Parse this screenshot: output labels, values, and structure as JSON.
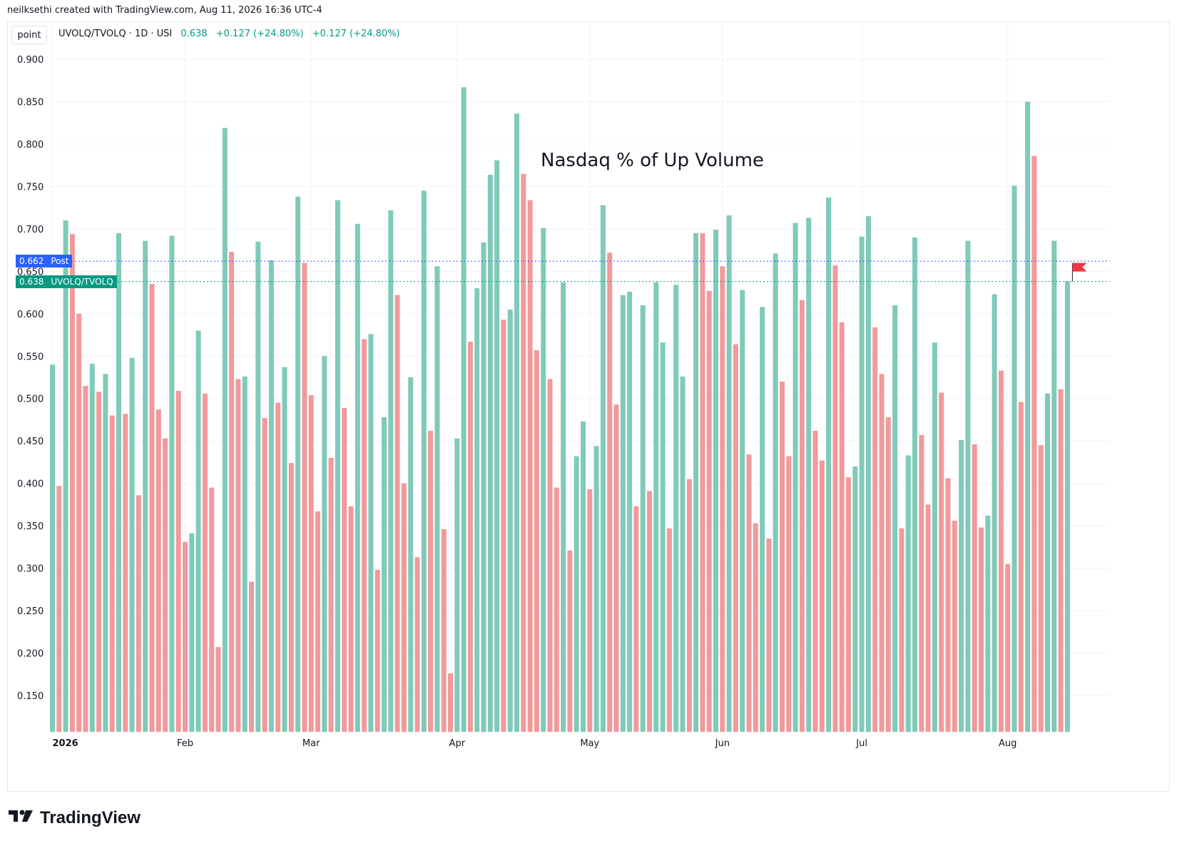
{
  "credit": "neilksethi created with TradingView.com, Aug 11, 2026 16:36 UTC-4",
  "point_button": "point",
  "legend": {
    "symbol": "UVOLQ/TVOLQ · 1D · USI",
    "last": "0.638",
    "change": "+0.127 (+24.80%)",
    "change2": "+0.127 (+24.80%)"
  },
  "annotation": "Nasdaq % of Up Volume",
  "tags": {
    "post_value": "0.662",
    "post_label": "Post",
    "series_value": "0.638",
    "series_label": "UVOLQ/TVOLQ"
  },
  "brand": "TradingView",
  "colors": {
    "up": "#7fcab8",
    "down": "#f2999b",
    "tag_post": "#2962ff",
    "tag_series": "#089981",
    "flag": "#f23645"
  },
  "chart_data": {
    "type": "bar",
    "y_ticks": [
      "0.900",
      "0.850",
      "0.800",
      "0.750",
      "0.700",
      "0.650",
      "0.600",
      "0.550",
      "0.500",
      "0.450",
      "0.400",
      "0.350",
      "0.300",
      "0.250",
      "0.200",
      "0.150"
    ],
    "ylim": [
      0.107,
      0.943
    ],
    "x_ticks": [
      {
        "label": "2026",
        "index": 0
      },
      {
        "label": "Feb",
        "index": 20
      },
      {
        "label": "Mar",
        "index": 39
      },
      {
        "label": "Apr",
        "index": 61
      },
      {
        "label": "May",
        "index": 81
      },
      {
        "label": "Jun",
        "index": 101
      },
      {
        "label": "Jul",
        "index": 122
      },
      {
        "label": "Aug",
        "index": 144
      }
    ],
    "post_line": 0.662,
    "last_line": 0.638,
    "values": [
      0.54,
      0.397,
      0.71,
      0.694,
      0.6,
      0.515,
      0.541,
      0.508,
      0.529,
      0.48,
      0.695,
      0.482,
      0.548,
      0.386,
      0.686,
      0.635,
      0.487,
      0.453,
      0.692,
      0.509,
      0.331,
      0.341,
      0.58,
      0.506,
      0.395,
      0.207,
      0.819,
      0.673,
      0.523,
      0.526,
      0.284,
      0.685,
      0.477,
      0.663,
      0.495,
      0.537,
      0.424,
      0.738,
      0.66,
      0.504,
      0.367,
      0.55,
      0.43,
      0.734,
      0.489,
      0.373,
      0.706,
      0.57,
      0.576,
      0.298,
      0.478,
      0.722,
      0.622,
      0.4,
      0.525,
      0.313,
      0.745,
      0.462,
      0.656,
      0.346,
      0.176,
      0.453,
      0.867,
      0.567,
      0.63,
      0.684,
      0.764,
      0.781,
      0.593,
      0.605,
      0.836,
      0.765,
      0.734,
      0.557,
      0.701,
      0.523,
      0.395,
      0.637,
      0.321,
      0.432,
      0.473,
      0.393,
      0.444,
      0.728,
      0.672,
      0.493,
      0.622,
      0.626,
      0.373,
      0.61,
      0.391,
      0.637,
      0.566,
      0.347,
      0.634,
      0.526,
      0.405,
      0.695,
      0.695,
      0.627,
      0.699,
      0.656,
      0.716,
      0.564,
      0.628,
      0.434,
      0.353,
      0.608,
      0.335,
      0.671,
      0.52,
      0.432,
      0.707,
      0.616,
      0.713,
      0.462,
      0.427,
      0.737,
      0.657,
      0.59,
      0.407,
      0.42,
      0.691,
      0.715,
      0.584,
      0.529,
      0.478,
      0.61,
      0.347,
      0.433,
      0.69,
      0.457,
      0.375,
      0.566,
      0.507,
      0.406,
      0.356,
      0.451,
      0.686,
      0.446,
      0.348,
      0.362,
      0.623,
      0.533,
      0.305,
      0.751,
      0.496,
      0.85,
      0.786,
      0.445,
      0.506,
      0.686,
      0.511,
      0.638
    ],
    "directions": [
      "u",
      "d",
      "u",
      "d",
      "d",
      "d",
      "u",
      "d",
      "u",
      "d",
      "u",
      "d",
      "u",
      "d",
      "u",
      "d",
      "d",
      "d",
      "u",
      "d",
      "d",
      "u",
      "u",
      "d",
      "d",
      "d",
      "u",
      "d",
      "d",
      "u",
      "d",
      "u",
      "d",
      "u",
      "d",
      "u",
      "d",
      "u",
      "d",
      "d",
      "d",
      "u",
      "d",
      "u",
      "d",
      "d",
      "u",
      "d",
      "u",
      "d",
      "u",
      "u",
      "d",
      "d",
      "u",
      "d",
      "u",
      "d",
      "u",
      "d",
      "d",
      "u",
      "u",
      "d",
      "u",
      "u",
      "u",
      "u",
      "d",
      "u",
      "u",
      "d",
      "d",
      "d",
      "u",
      "d",
      "d",
      "u",
      "d",
      "u",
      "u",
      "d",
      "u",
      "u",
      "d",
      "d",
      "u",
      "u",
      "d",
      "u",
      "d",
      "u",
      "u",
      "d",
      "u",
      "u",
      "d",
      "u",
      "d",
      "d",
      "u",
      "d",
      "u",
      "d",
      "u",
      "d",
      "d",
      "u",
      "d",
      "u",
      "d",
      "d",
      "u",
      "d",
      "u",
      "d",
      "d",
      "u",
      "d",
      "d",
      "d",
      "u",
      "u",
      "u",
      "d",
      "d",
      "d",
      "u",
      "d",
      "u",
      "u",
      "d",
      "d",
      "u",
      "d",
      "d",
      "d",
      "u",
      "u",
      "d",
      "d",
      "u",
      "u",
      "d",
      "d",
      "u",
      "d",
      "u",
      "d",
      "d",
      "u",
      "u",
      "d",
      "u"
    ]
  }
}
